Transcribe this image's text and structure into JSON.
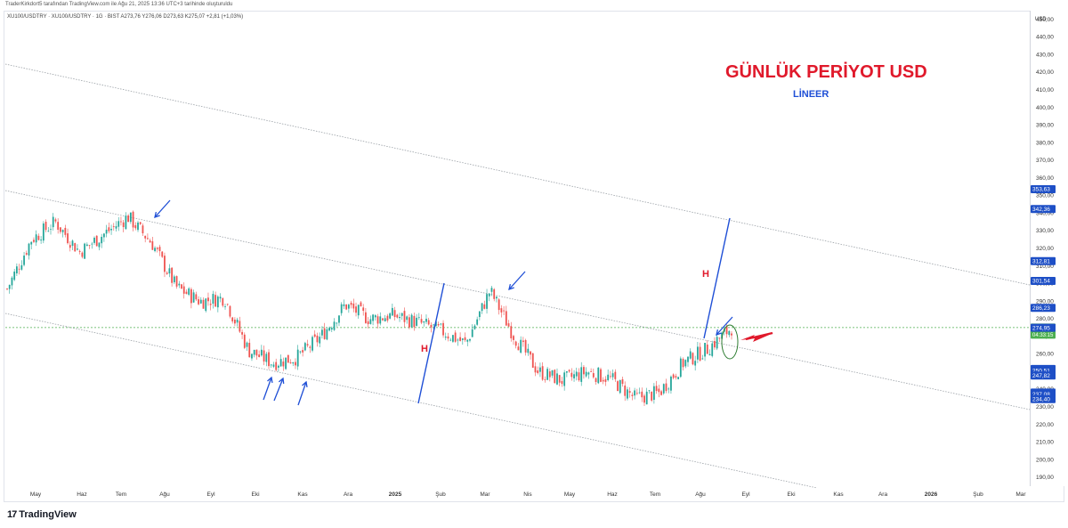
{
  "header": {
    "credit": "TraderKirkdort5 tarafından TradingView.com ile Ağu 21, 2025 13:36 UTC+3 tarihinde oluşturuldu",
    "symbol_line": "XU100/USDTRY · XU100/USDTRY · 1G · BIST   A273,76  Y276,06  D273,63  K275,07  +2,81 (+1,03%)"
  },
  "annotations": {
    "title": "GÜNLÜK PERİYOT USD",
    "subtitle": "LİNEER",
    "h_left": "H",
    "h_right": "H"
  },
  "branding": {
    "logo": "17",
    "name": "TradingView"
  },
  "colors": {
    "up": "#26a69a",
    "down": "#ef5350",
    "line": "#1f4fd6",
    "title": "#e0192b",
    "subtitle": "#1f4fd6",
    "channel": "#9aa0a6",
    "price_green": "#4caf50",
    "label_blue": "#1e4fc6"
  },
  "chart_data": {
    "type": "candlestick",
    "currency_label": "USD",
    "ylim": [
      185,
      455
    ],
    "y_ticks": [
      190,
      200,
      210,
      220,
      230,
      240,
      250,
      260,
      270,
      280,
      290,
      300,
      310,
      320,
      330,
      340,
      350,
      360,
      370,
      380,
      390,
      400,
      410,
      420,
      430,
      440,
      450
    ],
    "y_tick_labels": [
      "190,00",
      "200,00",
      "210,00",
      "220,00",
      "230,00",
      "240,00",
      "250,00",
      "260,00",
      "270,00",
      "280,00",
      "290,00",
      "300,00",
      "310,00",
      "320,00",
      "330,00",
      "340,00",
      "350,00",
      "360,00",
      "370,00",
      "380,00",
      "390,00",
      "400,00",
      "410,00",
      "420,00",
      "430,00",
      "440,00",
      "450,00"
    ],
    "x_labels": [
      "May",
      "Haz",
      "Tem",
      "Ağu",
      "Eyl",
      "Eki",
      "Kas",
      "Ara",
      "2025",
      "Şub",
      "Mar",
      "Nis",
      "May",
      "Haz",
      "Tem",
      "Ağu",
      "Eyl",
      "Eki",
      "Kas",
      "Ara",
      "2026",
      "Şub",
      "Mar"
    ],
    "x_labels_bold": [
      "2025",
      "2026"
    ],
    "price_labels": [
      {
        "value": 353.63,
        "label": "353,63",
        "style": "blue"
      },
      {
        "value": 342.36,
        "label": "342,36",
        "style": "blue"
      },
      {
        "value": 312.81,
        "label": "312,81",
        "style": "blue"
      },
      {
        "value": 301.54,
        "label": "301,54",
        "style": "blue"
      },
      {
        "value": 286.23,
        "label": "286,23",
        "style": "blue"
      },
      {
        "value": 275.07,
        "label": "275,07",
        "style": "green",
        "sublabel": "04:33:15"
      },
      {
        "value": 274.95,
        "label": "274,95",
        "style": "blue"
      },
      {
        "value": 251.58,
        "label": "251,58",
        "style": "blue"
      },
      {
        "value": 250.51,
        "label": "250,51",
        "style": "blue"
      },
      {
        "value": 247.82,
        "label": "247,82",
        "style": "blue"
      },
      {
        "value": 238.16,
        "label": "238,16",
        "style": "blue"
      },
      {
        "value": 237.08,
        "label": "237,08",
        "style": "blue"
      },
      {
        "value": 234.4,
        "label": "234,40",
        "style": "blue"
      }
    ],
    "current_price": 275.07,
    "price_path": [
      {
        "label": "May",
        "close": 297
      },
      {
        "label": "May",
        "close": 325
      },
      {
        "label": "Haz",
        "close": 335
      },
      {
        "label": "Haz",
        "close": 318
      },
      {
        "label": "Tem",
        "close": 328
      },
      {
        "label": "Tem",
        "close": 338
      },
      {
        "label": "Ağu",
        "close": 323
      },
      {
        "label": "Ağu",
        "close": 298
      },
      {
        "label": "Eyl",
        "close": 290
      },
      {
        "label": "Eyl",
        "close": 292
      },
      {
        "label": "Eki",
        "close": 262
      },
      {
        "label": "Eki",
        "close": 255
      },
      {
        "label": "Kas",
        "close": 258
      },
      {
        "label": "Kas",
        "close": 270
      },
      {
        "label": "Ara",
        "close": 288
      },
      {
        "label": "Ara",
        "close": 280
      },
      {
        "label": "2025",
        "close": 282
      },
      {
        "label": "2025",
        "close": 278
      },
      {
        "label": "Şub",
        "close": 273
      },
      {
        "label": "Şub",
        "close": 266
      },
      {
        "label": "Mar",
        "close": 296
      },
      {
        "label": "Mar",
        "close": 270
      },
      {
        "label": "Nis",
        "close": 250
      },
      {
        "label": "Nis",
        "close": 245
      },
      {
        "label": "May",
        "close": 250
      },
      {
        "label": "May",
        "close": 246
      },
      {
        "label": "Haz",
        "close": 235
      },
      {
        "label": "Haz",
        "close": 238
      },
      {
        "label": "Tem",
        "close": 255
      },
      {
        "label": "Tem",
        "close": 263
      },
      {
        "label": "Ağu",
        "close": 275
      }
    ]
  }
}
